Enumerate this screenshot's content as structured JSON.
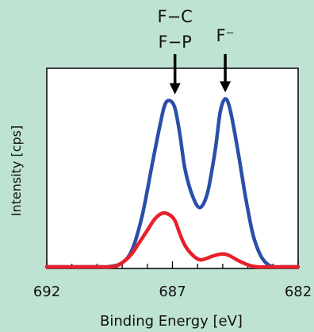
{
  "colors": {
    "background": "#bfe3d3",
    "plot_bg": "#ffffff",
    "blue": "#2a4fa8",
    "red": "#e8202a"
  },
  "chart_data": {
    "type": "line",
    "xlabel": "Binding Energy [eV]",
    "ylabel": "Intensity [cps]",
    "x_axis_reversed": true,
    "xlim": [
      692,
      682
    ],
    "ylim": [
      0,
      1
    ],
    "x_ticks": [
      692,
      687,
      682
    ],
    "x_tick_labels": [
      "692",
      "687",
      "682"
    ],
    "minor_tick_step": 1,
    "y_ticks_shown": false,
    "grid": false,
    "series": [
      {
        "color": "#2a4fa8",
        "x": [
          692,
          690,
          689.5,
          689,
          688.6,
          688.2,
          687.8,
          687.5,
          687.3,
          687.1,
          686.9,
          686.7,
          686.5,
          686.2,
          685.9,
          685.6,
          685.3,
          685.1,
          684.9,
          684.7,
          684.4,
          684.1,
          683.8,
          683.5,
          683.2,
          682.9,
          682.6,
          682
        ],
        "y": [
          0.0,
          0.0,
          0.01,
          0.03,
          0.1,
          0.28,
          0.55,
          0.75,
          0.86,
          0.88,
          0.84,
          0.7,
          0.52,
          0.38,
          0.32,
          0.4,
          0.62,
          0.82,
          0.89,
          0.83,
          0.62,
          0.38,
          0.18,
          0.07,
          0.02,
          0.005,
          0.0,
          0.0
        ]
      },
      {
        "color": "#e8202a",
        "x": [
          692,
          690,
          689.5,
          689.2,
          688.9,
          688.6,
          688.3,
          688,
          687.7,
          687.4,
          687.1,
          686.9,
          686.7,
          686.5,
          686.2,
          685.9,
          685.6,
          685.4,
          685.1,
          684.9,
          684.7,
          684.5,
          684.2,
          683.9,
          683.6,
          683.3,
          683,
          682
        ],
        "y": [
          0.0,
          0.0,
          0.005,
          0.015,
          0.04,
          0.08,
          0.14,
          0.2,
          0.26,
          0.29,
          0.28,
          0.25,
          0.18,
          0.12,
          0.07,
          0.045,
          0.055,
          0.065,
          0.075,
          0.075,
          0.065,
          0.05,
          0.03,
          0.015,
          0.005,
          0.0,
          0.0,
          0.0
        ]
      }
    ],
    "annotations": [
      {
        "lines": [
          "F−C",
          "F−P"
        ],
        "x": 686.9,
        "arrow_to_y": 0.88
      },
      {
        "lines": [
          "F⁻"
        ],
        "x": 684.9,
        "arrow_to_y": 0.89
      }
    ]
  }
}
